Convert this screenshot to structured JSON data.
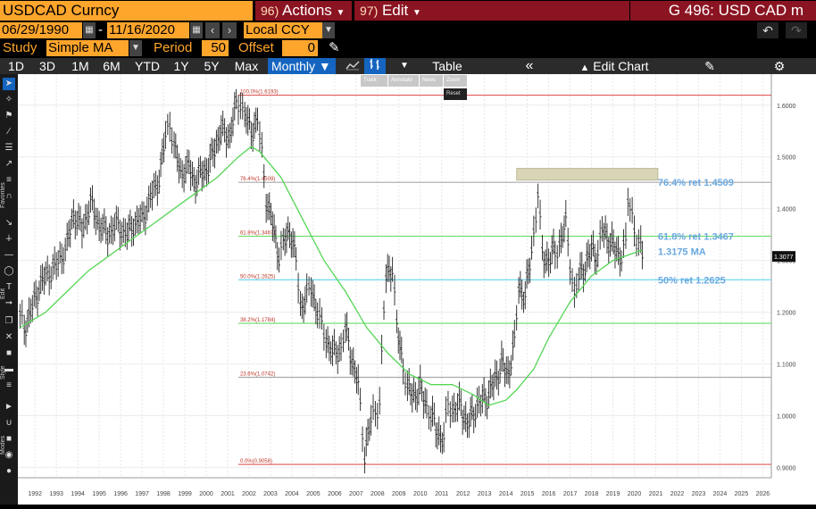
{
  "header": {
    "security": "USDCAD Curncy",
    "actions_num": "96)",
    "actions_label": "Actions",
    "edit_num": "97)",
    "edit_label": "Edit",
    "function_title": "G 496: USD CAD m"
  },
  "controls": {
    "start_date": "06/29/1990",
    "end_date": "11/16/2020",
    "currency": "Local CCY",
    "study_label": "Study",
    "study_value": "Simple MA",
    "period_label": "Period",
    "period_value": "50",
    "offset_label": "Offset",
    "offset_value": "0"
  },
  "toolbar": {
    "ranges": [
      "1D",
      "3D",
      "1M",
      "6M",
      "YTD",
      "1Y",
      "5Y",
      "Max"
    ],
    "frequency": "Monthly",
    "table_label": "Table",
    "edit_chart_label": "Edit Chart",
    "mini": [
      "Track",
      "Annotate",
      "News",
      "Zoom"
    ],
    "reset_label": "Reset"
  },
  "side_labels": [
    "Favorites",
    "Edit",
    "Style",
    "Modes"
  ],
  "colors": {
    "orange": "#fea52c",
    "maroon": "#8b1422",
    "selected_blue": "#1565c0",
    "ma_line": "#55d655",
    "fib_label": "#6aa8e0"
  },
  "chart_data": {
    "type": "line",
    "frequency": "Monthly",
    "y_range": [
      0.88,
      1.66
    ],
    "x_range": [
      1991.7,
      2026.9
    ],
    "y_ticks": [
      "1.6000",
      "1.5000",
      "1.4000",
      "1.3000",
      "1.2000",
      "1.1000",
      "1.0000",
      "0.9000"
    ],
    "x_ticks": [
      "1992",
      "1993",
      "1994",
      "1995",
      "1996",
      "1997",
      "1998",
      "1999",
      "2000",
      "2001",
      "2002",
      "2003",
      "2004",
      "2005",
      "2006",
      "2007",
      "2008",
      "2009",
      "2010",
      "2011",
      "2012",
      "2013",
      "2014",
      "2015",
      "2016",
      "2017",
      "2018",
      "2019",
      "2020",
      "2021",
      "2022",
      "2023",
      "2024",
      "2025",
      "2026"
    ],
    "last_price_label": "1.3077",
    "price_series": [
      [
        1991.8,
        1.19
      ],
      [
        1992.0,
        1.17
      ],
      [
        1992.3,
        1.2
      ],
      [
        1992.7,
        1.25
      ],
      [
        1993.0,
        1.27
      ],
      [
        1993.5,
        1.29
      ],
      [
        1994.0,
        1.33
      ],
      [
        1994.3,
        1.39
      ],
      [
        1994.7,
        1.36
      ],
      [
        1995.1,
        1.41
      ],
      [
        1995.5,
        1.37
      ],
      [
        1995.9,
        1.35
      ],
      [
        1996.3,
        1.37
      ],
      [
        1996.8,
        1.35
      ],
      [
        1997.1,
        1.37
      ],
      [
        1997.5,
        1.38
      ],
      [
        1997.9,
        1.42
      ],
      [
        1998.3,
        1.46
      ],
      [
        1998.6,
        1.54
      ],
      [
        1998.8,
        1.57
      ],
      [
        1999.0,
        1.52
      ],
      [
        1999.3,
        1.47
      ],
      [
        1999.7,
        1.48
      ],
      [
        2000.0,
        1.45
      ],
      [
        2000.3,
        1.47
      ],
      [
        2000.6,
        1.48
      ],
      [
        2000.9,
        1.52
      ],
      [
        2001.2,
        1.55
      ],
      [
        2001.6,
        1.54
      ],
      [
        2001.9,
        1.6
      ],
      [
        2002.1,
        1.61
      ],
      [
        2002.3,
        1.58
      ],
      [
        2002.6,
        1.55
      ],
      [
        2002.9,
        1.57
      ],
      [
        2003.1,
        1.51
      ],
      [
        2003.3,
        1.42
      ],
      [
        2003.6,
        1.37
      ],
      [
        2003.9,
        1.31
      ],
      [
        2004.1,
        1.33
      ],
      [
        2004.4,
        1.36
      ],
      [
        2004.7,
        1.3
      ],
      [
        2004.9,
        1.21
      ],
      [
        2005.2,
        1.23
      ],
      [
        2005.4,
        1.25
      ],
      [
        2005.7,
        1.2
      ],
      [
        2005.9,
        1.17
      ],
      [
        2006.1,
        1.15
      ],
      [
        2006.4,
        1.12
      ],
      [
        2006.8,
        1.13
      ],
      [
        2007.0,
        1.17
      ],
      [
        2007.3,
        1.11
      ],
      [
        2007.6,
        1.06
      ],
      [
        2007.8,
        0.97
      ],
      [
        2007.9,
        0.93
      ],
      [
        2008.2,
        0.99
      ],
      [
        2008.4,
        1.01
      ],
      [
        2008.6,
        1.03
      ],
      [
        2008.8,
        1.2
      ],
      [
        2008.9,
        1.27
      ],
      [
        2009.2,
        1.29
      ],
      [
        2009.4,
        1.17
      ],
      [
        2009.7,
        1.1
      ],
      [
        2009.9,
        1.05
      ],
      [
        2010.2,
        1.04
      ],
      [
        2010.5,
        1.05
      ],
      [
        2010.8,
        1.02
      ],
      [
        2011.0,
        1.0
      ],
      [
        2011.3,
        0.97
      ],
      [
        2011.6,
        0.95
      ],
      [
        2011.8,
        1.03
      ],
      [
        2012.0,
        1.01
      ],
      [
        2012.4,
        1.02
      ],
      [
        2012.7,
        0.98
      ],
      [
        2013.0,
        1.01
      ],
      [
        2013.4,
        1.03
      ],
      [
        2013.7,
        1.04
      ],
      [
        2014.0,
        1.07
      ],
      [
        2014.3,
        1.1
      ],
      [
        2014.6,
        1.08
      ],
      [
        2014.9,
        1.14
      ],
      [
        2015.1,
        1.25
      ],
      [
        2015.4,
        1.23
      ],
      [
        2015.7,
        1.32
      ],
      [
        2015.9,
        1.39
      ],
      [
        2016.0,
        1.43
      ],
      [
        2016.2,
        1.31
      ],
      [
        2016.5,
        1.3
      ],
      [
        2016.8,
        1.32
      ],
      [
        2017.0,
        1.33
      ],
      [
        2017.3,
        1.37
      ],
      [
        2017.5,
        1.3
      ],
      [
        2017.7,
        1.23
      ],
      [
        2017.9,
        1.27
      ],
      [
        2018.2,
        1.29
      ],
      [
        2018.5,
        1.32
      ],
      [
        2018.8,
        1.31
      ],
      [
        2019.0,
        1.36
      ],
      [
        2019.3,
        1.34
      ],
      [
        2019.6,
        1.32
      ],
      [
        2019.9,
        1.31
      ],
      [
        2020.1,
        1.33
      ],
      [
        2020.2,
        1.42
      ],
      [
        2020.4,
        1.39
      ],
      [
        2020.6,
        1.34
      ],
      [
        2020.8,
        1.32
      ],
      [
        2020.87,
        1.31
      ]
    ],
    "ma_series": [
      [
        1991.8,
        1.17
      ],
      [
        1993.0,
        1.2
      ],
      [
        1994.0,
        1.24
      ],
      [
        1995.0,
        1.28
      ],
      [
        1996.0,
        1.31
      ],
      [
        1997.0,
        1.34
      ],
      [
        1998.0,
        1.37
      ],
      [
        1999.0,
        1.4
      ],
      [
        2000.0,
        1.43
      ],
      [
        2001.0,
        1.46
      ],
      [
        2002.0,
        1.5
      ],
      [
        2002.6,
        1.52
      ],
      [
        2003.0,
        1.51
      ],
      [
        2004.0,
        1.46
      ],
      [
        2005.0,
        1.38
      ],
      [
        2006.0,
        1.3
      ],
      [
        2007.0,
        1.24
      ],
      [
        2008.0,
        1.17
      ],
      [
        2009.0,
        1.12
      ],
      [
        2010.0,
        1.08
      ],
      [
        2011.0,
        1.06
      ],
      [
        2012.0,
        1.06
      ],
      [
        2013.0,
        1.04
      ],
      [
        2013.7,
        1.02
      ],
      [
        2014.5,
        1.03
      ],
      [
        2015.0,
        1.05
      ],
      [
        2015.8,
        1.09
      ],
      [
        2016.5,
        1.15
      ],
      [
        2017.5,
        1.22
      ],
      [
        2018.5,
        1.27
      ],
      [
        2019.5,
        1.3
      ],
      [
        2020.87,
        1.32
      ]
    ],
    "fib_levels": [
      {
        "label": "100.0%(1.6193)",
        "value": 1.6193,
        "color": "#e05a5a"
      },
      {
        "label": "76.4%(1.4509)",
        "value": 1.4509,
        "color": "#aaaaaa"
      },
      {
        "label": "61.8%(1.3467)",
        "value": 1.3467,
        "color": "#66dd66"
      },
      {
        "label": "50.0%(1.2625)",
        "value": 1.2625,
        "color": "#6fd9f0"
      },
      {
        "label": "38.2%(1.1784)",
        "value": 1.1784,
        "color": "#66dd66"
      },
      {
        "label": "23.6%(1.0742)",
        "value": 1.0742,
        "color": "#aaaaaa"
      },
      {
        "label": "0.0%(0.9058)",
        "value": 0.9058,
        "color": "#e05a5a"
      }
    ],
    "annotations": [
      {
        "text": "76.4% ret 1.4509",
        "y": 1.4509
      },
      {
        "text": "61.8% ret 1.3467",
        "y": 1.3467
      },
      {
        "text": "1.3175 MA",
        "y": 1.3175
      },
      {
        "text": "50% ret 1.2625",
        "y": 1.2625
      }
    ],
    "highlight_box": {
      "x0": 2015.0,
      "x1": 2021.6,
      "y0": 1.455,
      "y1": 1.478
    }
  }
}
